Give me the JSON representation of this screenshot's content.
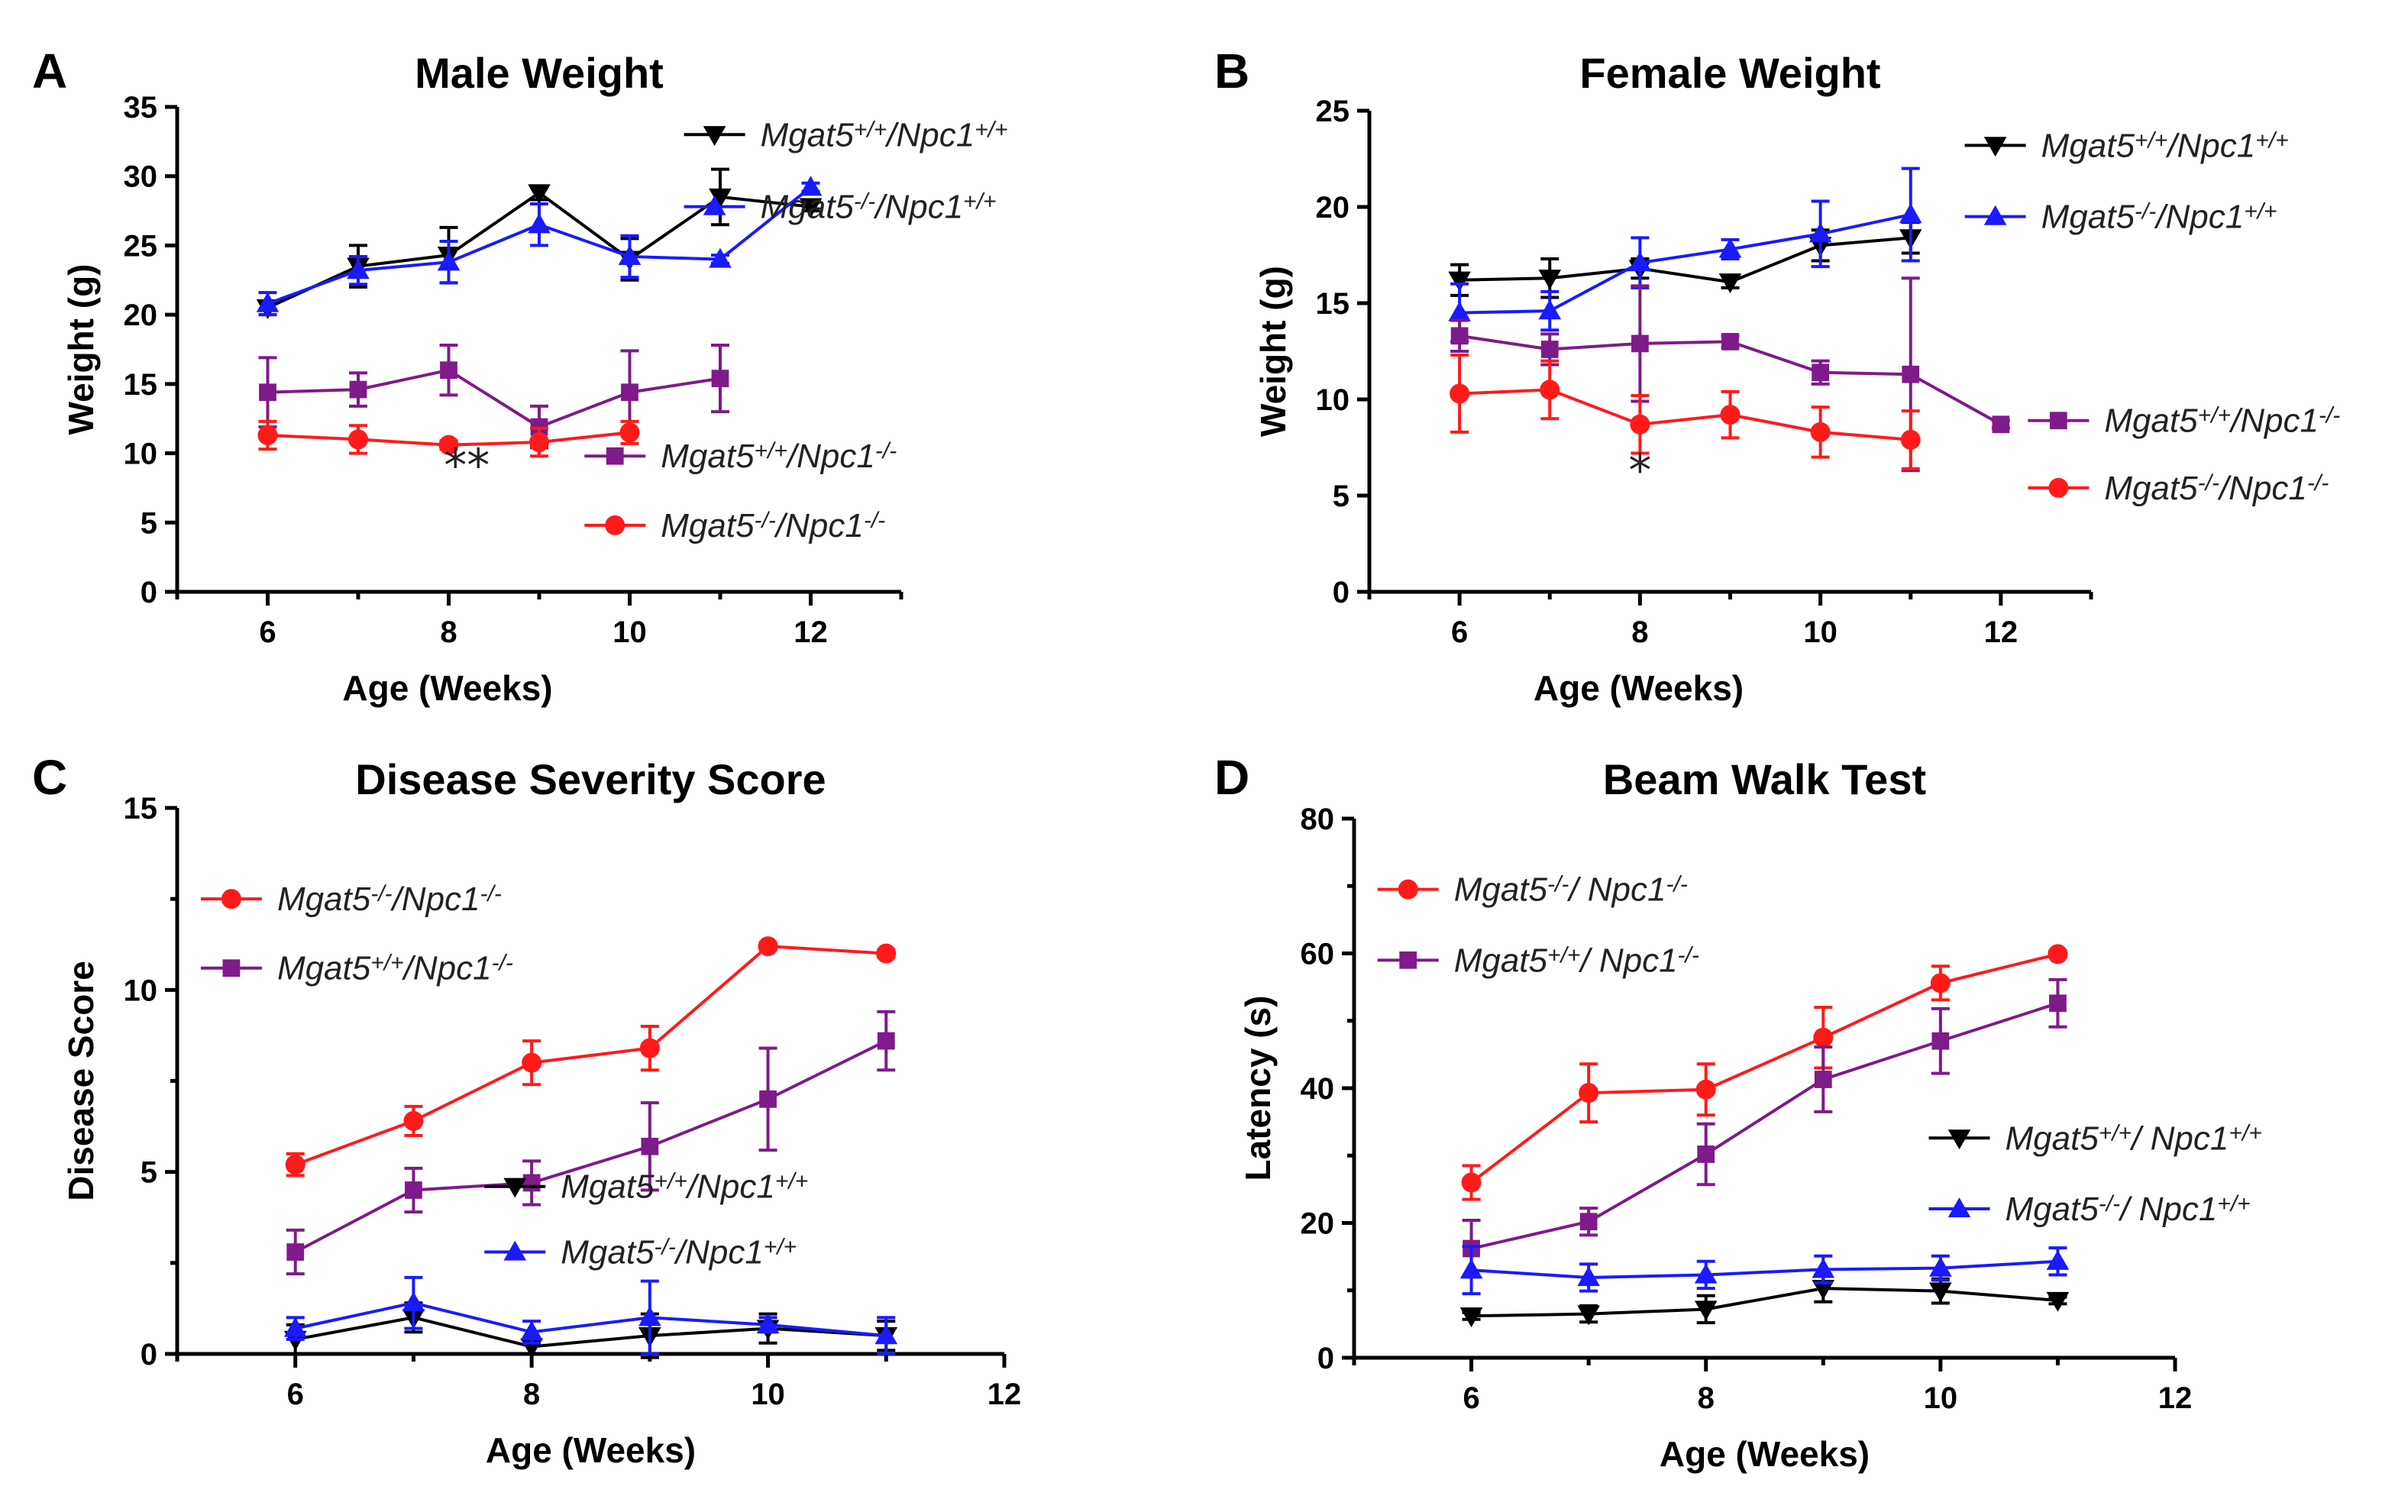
{
  "panels": [
    {
      "letter": "A",
      "chart_data": {
        "type": "line",
        "title": "Male Weight",
        "xlabel": "Age (Weeks)",
        "ylabel": "Weight (g)",
        "xlim": [
          5,
          13
        ],
        "ylim": [
          0,
          35
        ],
        "xticks": [
          6,
          8,
          10,
          12
        ],
        "yticks": [
          0,
          5,
          10,
          15,
          20,
          25,
          30,
          35
        ],
        "series": [
          {
            "name": "Mgat5+/+/Npc1+/+",
            "color": "#000000",
            "marker": "triangle-down",
            "x": [
              6,
              7,
              8,
              9,
              10,
              11,
              12
            ],
            "y": [
              20.5,
              23.5,
              24.3,
              28.8,
              24.0,
              28.5,
              27.8
            ],
            "err": [
              0.5,
              1.5,
              2.0,
              0.5,
              1.5,
              2.0,
              0.3
            ]
          },
          {
            "name": "Mgat5-/-/Npc1+/+",
            "color": "#1a1aff",
            "marker": "triangle-up",
            "x": [
              6,
              7,
              8,
              9,
              10,
              11,
              12
            ],
            "y": [
              20.8,
              23.2,
              23.8,
              26.5,
              24.2,
              24.0,
              29.2
            ],
            "err": [
              0.8,
              1.0,
              1.5,
              1.5,
              1.5,
              0.3,
              0.3
            ]
          },
          {
            "name": "Mgat5+/+/Npc1-/-",
            "color": "#7f1a8a",
            "marker": "square",
            "x": [
              6,
              7,
              8,
              9,
              10,
              11
            ],
            "y": [
              14.4,
              14.6,
              16.0,
              11.9,
              14.4,
              15.4
            ],
            "err": [
              2.5,
              1.2,
              1.8,
              1.5,
              3.0,
              2.4
            ]
          },
          {
            "name": "Mgat5-/-/Npc1-/-",
            "color": "#ff1a1a",
            "marker": "circle",
            "x": [
              6,
              7,
              8,
              9,
              10
            ],
            "y": [
              11.3,
              11.0,
              10.6,
              10.8,
              11.5
            ],
            "err": [
              1.0,
              1.0,
              0.3,
              1.0,
              0.8
            ]
          }
        ],
        "annotations": [
          {
            "text": "**",
            "x": 8.2,
            "y": 8.0
          }
        ]
      },
      "legend_blocks": [
        {
          "x": 10.6,
          "y": 33.0,
          "dy": 5.2,
          "series": [
            0,
            1
          ]
        },
        {
          "x": 9.5,
          "y": 9.8,
          "dy": 5.0,
          "series": [
            2,
            3
          ]
        }
      ]
    },
    {
      "letter": "B",
      "chart_data": {
        "type": "line",
        "title": "Female Weight",
        "xlabel": "Age (Weeks)",
        "ylabel": "Weight (g)",
        "xlim": [
          5,
          13
        ],
        "ylim": [
          0,
          25
        ],
        "xticks": [
          6,
          8,
          10,
          12
        ],
        "yticks": [
          0,
          5,
          10,
          15,
          20,
          25
        ],
        "series": [
          {
            "name": "Mgat5+/+/Npc1+/+",
            "color": "#000000",
            "marker": "triangle-down",
            "x": [
              6,
              7,
              8,
              9,
              10,
              11
            ],
            "y": [
              16.2,
              16.3,
              16.8,
              16.1,
              18.0,
              18.4
            ],
            "err": [
              0.8,
              1.0,
              0.5,
              0.3,
              0.8,
              0.8
            ]
          },
          {
            "name": "Mgat5-/-/Npc1+/+",
            "color": "#1a1aff",
            "marker": "triangle-up",
            "x": [
              6,
              7,
              8,
              9,
              10,
              11
            ],
            "y": [
              14.5,
              14.6,
              17.1,
              17.8,
              18.6,
              19.6
            ],
            "err": [
              1.5,
              1.0,
              1.3,
              0.5,
              1.7,
              2.4
            ]
          },
          {
            "name": "Mgat5+/+/Npc1-/-",
            "color": "#7f1a8a",
            "marker": "square",
            "x": [
              6,
              7,
              8,
              9,
              10,
              11,
              12
            ],
            "y": [
              13.3,
              12.6,
              12.9,
              13.0,
              11.4,
              11.3,
              8.7
            ],
            "err": [
              0.8,
              0.8,
              3.0,
              0.3,
              0.6,
              5.0,
              0.2
            ]
          },
          {
            "name": "Mgat5-/-/Npc1-/-",
            "color": "#ff1a1a",
            "marker": "circle",
            "x": [
              6,
              7,
              8,
              9,
              10,
              11
            ],
            "y": [
              10.3,
              10.5,
              8.7,
              9.2,
              8.3,
              7.9
            ],
            "err": [
              2.0,
              1.5,
              1.5,
              1.2,
              1.3,
              1.5
            ]
          }
        ],
        "annotations": [
          {
            "text": "*",
            "x": 8.0,
            "y": 5.5
          }
        ]
      },
      "legend_blocks": [
        {
          "x": 11.6,
          "y": 23.2,
          "dy": 3.7,
          "series": [
            0,
            1
          ]
        },
        {
          "x": 12.3,
          "y": 8.9,
          "dy": 3.5,
          "series": [
            2,
            3
          ]
        }
      ]
    },
    {
      "letter": "C",
      "chart_data": {
        "type": "line",
        "title": "Disease Severity Score",
        "xlabel": "Age (Weeks)",
        "ylabel": "Disease Score",
        "xlim": [
          5,
          12
        ],
        "ylim": [
          0,
          15
        ],
        "xticks": [
          6,
          8,
          10,
          12
        ],
        "yticks": [
          0,
          5,
          10,
          15
        ],
        "series": [
          {
            "name": "Mgat5-/-/Npc1-/-",
            "color": "#ff1a1a",
            "marker": "circle",
            "x": [
              6,
              7,
              8,
              9,
              10,
              11
            ],
            "y": [
              5.2,
              6.4,
              8.0,
              8.4,
              11.2,
              11.0
            ],
            "err": [
              0.3,
              0.4,
              0.6,
              0.6,
              0.1,
              0.1
            ]
          },
          {
            "name": "Mgat5+/+/Npc1-/-",
            "color": "#7f1a8a",
            "marker": "square",
            "x": [
              6,
              7,
              8,
              9,
              10,
              11
            ],
            "y": [
              2.8,
              4.5,
              4.7,
              5.7,
              7.0,
              8.6
            ],
            "err": [
              0.6,
              0.6,
              0.6,
              1.2,
              1.4,
              0.8
            ]
          },
          {
            "name": "Mgat5+/+/Npc1+/+",
            "color": "#000000",
            "marker": "triangle-down",
            "x": [
              6,
              7,
              8,
              9,
              10,
              11
            ],
            "y": [
              0.4,
              1.0,
              0.2,
              0.5,
              0.7,
              0.5
            ],
            "err": [
              0.4,
              0.4,
              0.2,
              0.6,
              0.4,
              0.4
            ]
          },
          {
            "name": "Mgat5-/-/Npc1+/+",
            "color": "#1a1aff",
            "marker": "triangle-up",
            "x": [
              6,
              7,
              8,
              9,
              10,
              11
            ],
            "y": [
              0.7,
              1.4,
              0.6,
              1.0,
              0.8,
              0.5
            ],
            "err": [
              0.3,
              0.7,
              0.3,
              1.0,
              0.2,
              0.5
            ]
          }
        ]
      },
      "legend_blocks": [
        {
          "x": 5.2,
          "y": 12.5,
          "dy": 1.9,
          "series": [
            0,
            1
          ]
        },
        {
          "x": 7.6,
          "y": 4.6,
          "dy": 1.8,
          "series": [
            2,
            3
          ]
        }
      ]
    },
    {
      "letter": "D",
      "chart_data": {
        "type": "line",
        "title": "Beam Walk Test",
        "xlabel": "Age (Weeks)",
        "ylabel": "Latency (s)",
        "xlim": [
          5,
          12
        ],
        "ylim": [
          0,
          80
        ],
        "xticks": [
          6,
          8,
          10,
          12
        ],
        "yticks": [
          0,
          20,
          40,
          60,
          80
        ],
        "series": [
          {
            "name": "Mgat5-/-/ Npc1-/-",
            "color": "#ff1a1a",
            "marker": "circle",
            "x": [
              6,
              7,
              8,
              9,
              10,
              11
            ],
            "y": [
              26,
              39.3,
              39.8,
              47.5,
              55.6,
              59.9
            ],
            "err": [
              2.5,
              4.3,
              3.8,
              4.5,
              2.5,
              0.5
            ]
          },
          {
            "name": "Mgat5+/+/ Npc1-/-",
            "color": "#7f1a8a",
            "marker": "square",
            "x": [
              6,
              7,
              8,
              9,
              10,
              11
            ],
            "y": [
              16.2,
              20.2,
              30.2,
              41.3,
              47.0,
              52.6
            ],
            "err": [
              4.2,
              2.0,
              4.5,
              4.8,
              4.8,
              3.5
            ]
          },
          {
            "name": "Mgat5+/+/ Npc1+/+",
            "color": "#000000",
            "marker": "triangle-down",
            "x": [
              6,
              7,
              8,
              9,
              10,
              11
            ],
            "y": [
              6.2,
              6.5,
              7.2,
              10.3,
              9.9,
              8.5
            ],
            "err": [
              0.5,
              1.2,
              2.0,
              2.0,
              1.8,
              0.5
            ]
          },
          {
            "name": "Mgat5-/-/ Npc1+/+",
            "color": "#1a1aff",
            "marker": "triangle-up",
            "x": [
              6,
              7,
              8,
              9,
              10,
              11
            ],
            "y": [
              13.0,
              11.9,
              12.3,
              13.1,
              13.3,
              14.3
            ],
            "err": [
              3.5,
              2.0,
              2.0,
              2.0,
              1.8,
              2.0
            ]
          }
        ]
      },
      "legend_blocks": [
        {
          "x": 5.2,
          "y": 69.5,
          "dy": 10.5,
          "series": [
            0,
            1
          ]
        },
        {
          "x": 9.9,
          "y": 32.6,
          "dy": 10.5,
          "series": [
            2,
            3
          ]
        }
      ]
    }
  ]
}
